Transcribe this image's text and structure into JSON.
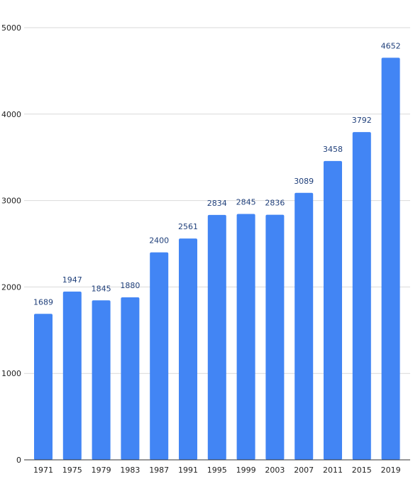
{
  "chart_data": {
    "type": "bar",
    "categories": [
      "1971",
      "1975",
      "1979",
      "1983",
      "1987",
      "1991",
      "1995",
      "1999",
      "2003",
      "2007",
      "2011",
      "2015",
      "2019"
    ],
    "values": [
      1689,
      1947,
      1845,
      1880,
      2400,
      2561,
      2834,
      2845,
      2836,
      3089,
      3458,
      3792,
      4652
    ],
    "title": "",
    "xlabel": "",
    "ylabel": "",
    "ylim": [
      0,
      5000
    ],
    "yticks": [
      0,
      1000,
      2000,
      3000,
      4000,
      5000
    ],
    "grid": true,
    "legend": "none",
    "bar_color": "#4285f4",
    "data_label_color": "#1f3f7a"
  }
}
